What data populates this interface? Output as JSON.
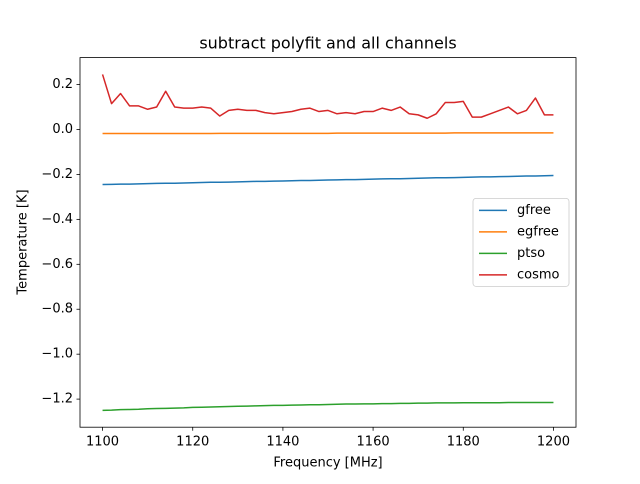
{
  "chart_data": {
    "type": "line",
    "title": "subtract polyfit and all channels",
    "xlabel": "Frequency [MHz]",
    "ylabel": "Temperature [K]",
    "xlim": [
      1095,
      1205
    ],
    "ylim": [
      -1.325,
      0.32
    ],
    "xticks": [
      1100,
      1120,
      1140,
      1160,
      1180,
      1200
    ],
    "yticks": [
      0.2,
      {
        "value": 0.0,
        "label": "0.0"
      },
      {
        "value": -0.2,
        "label": "−0.2"
      },
      {
        "value": -0.4,
        "label": "−0.4"
      },
      {
        "value": -0.6,
        "label": "−0.6"
      },
      {
        "value": -0.8,
        "label": "−0.8"
      },
      {
        "value": -1.0,
        "label": "−1.0"
      },
      {
        "value": -1.2,
        "label": "−1.2"
      }
    ],
    "legend": "center right",
    "grid": false,
    "x": [
      1100,
      1102,
      1104,
      1106,
      1108,
      1110,
      1112,
      1114,
      1116,
      1118,
      1120,
      1122,
      1124,
      1126,
      1128,
      1130,
      1132,
      1134,
      1136,
      1138,
      1140,
      1142,
      1144,
      1146,
      1148,
      1150,
      1152,
      1154,
      1156,
      1158,
      1160,
      1162,
      1164,
      1166,
      1168,
      1170,
      1172,
      1174,
      1176,
      1178,
      1180,
      1182,
      1184,
      1186,
      1188,
      1190,
      1192,
      1194,
      1196,
      1198,
      1200
    ],
    "series": [
      {
        "name": "gfree",
        "color": "#1f77b4",
        "values": [
          -0.245,
          -0.244,
          -0.243,
          -0.243,
          -0.242,
          -0.241,
          -0.24,
          -0.239,
          -0.239,
          -0.238,
          -0.237,
          -0.236,
          -0.235,
          -0.235,
          -0.234,
          -0.233,
          -0.232,
          -0.231,
          -0.231,
          -0.23,
          -0.229,
          -0.228,
          -0.227,
          -0.227,
          -0.226,
          -0.225,
          -0.224,
          -0.223,
          -0.223,
          -0.222,
          -0.221,
          -0.22,
          -0.219,
          -0.219,
          -0.218,
          -0.217,
          -0.216,
          -0.215,
          -0.215,
          -0.214,
          -0.213,
          -0.212,
          -0.211,
          -0.211,
          -0.21,
          -0.209,
          -0.208,
          -0.207,
          -0.207,
          -0.206,
          -0.205
        ]
      },
      {
        "name": "egfree",
        "color": "#ff7f0e",
        "values": [
          -0.018,
          -0.018,
          -0.018,
          -0.018,
          -0.018,
          -0.018,
          -0.018,
          -0.018,
          -0.018,
          -0.018,
          -0.018,
          -0.018,
          -0.018,
          -0.017,
          -0.017,
          -0.017,
          -0.017,
          -0.017,
          -0.017,
          -0.017,
          -0.017,
          -0.017,
          -0.017,
          -0.017,
          -0.017,
          -0.017,
          -0.016,
          -0.016,
          -0.016,
          -0.016,
          -0.016,
          -0.016,
          -0.016,
          -0.016,
          -0.016,
          -0.016,
          -0.016,
          -0.016,
          -0.016,
          -0.015,
          -0.015,
          -0.015,
          -0.015,
          -0.015,
          -0.015,
          -0.015,
          -0.015,
          -0.015,
          -0.015,
          -0.015,
          -0.015
        ]
      },
      {
        "name": "ptso",
        "color": "#2ca02c",
        "values": [
          -1.25,
          -1.249,
          -1.247,
          -1.246,
          -1.245,
          -1.243,
          -1.242,
          -1.241,
          -1.24,
          -1.239,
          -1.237,
          -1.236,
          -1.235,
          -1.234,
          -1.233,
          -1.232,
          -1.231,
          -1.23,
          -1.229,
          -1.228,
          -1.228,
          -1.227,
          -1.226,
          -1.225,
          -1.225,
          -1.224,
          -1.223,
          -1.222,
          -1.222,
          -1.221,
          -1.221,
          -1.22,
          -1.22,
          -1.219,
          -1.219,
          -1.218,
          -1.218,
          -1.217,
          -1.217,
          -1.217,
          -1.216,
          -1.216,
          -1.216,
          -1.216,
          -1.216,
          -1.215,
          -1.215,
          -1.215,
          -1.215,
          -1.215,
          -1.215
        ]
      },
      {
        "name": "cosmo",
        "color": "#d62728",
        "values": [
          0.245,
          0.115,
          0.16,
          0.105,
          0.105,
          0.09,
          0.1,
          0.17,
          0.1,
          0.095,
          0.095,
          0.1,
          0.095,
          0.06,
          0.085,
          0.09,
          0.085,
          0.085,
          0.075,
          0.07,
          0.075,
          0.08,
          0.09,
          0.095,
          0.08,
          0.085,
          0.07,
          0.075,
          0.07,
          0.08,
          0.08,
          0.095,
          0.085,
          0.1,
          0.07,
          0.065,
          0.05,
          0.07,
          0.12,
          0.12,
          0.125,
          0.055,
          0.055,
          0.07,
          0.085,
          0.1,
          0.07,
          0.085,
          0.14,
          0.065,
          0.065
        ]
      }
    ]
  }
}
